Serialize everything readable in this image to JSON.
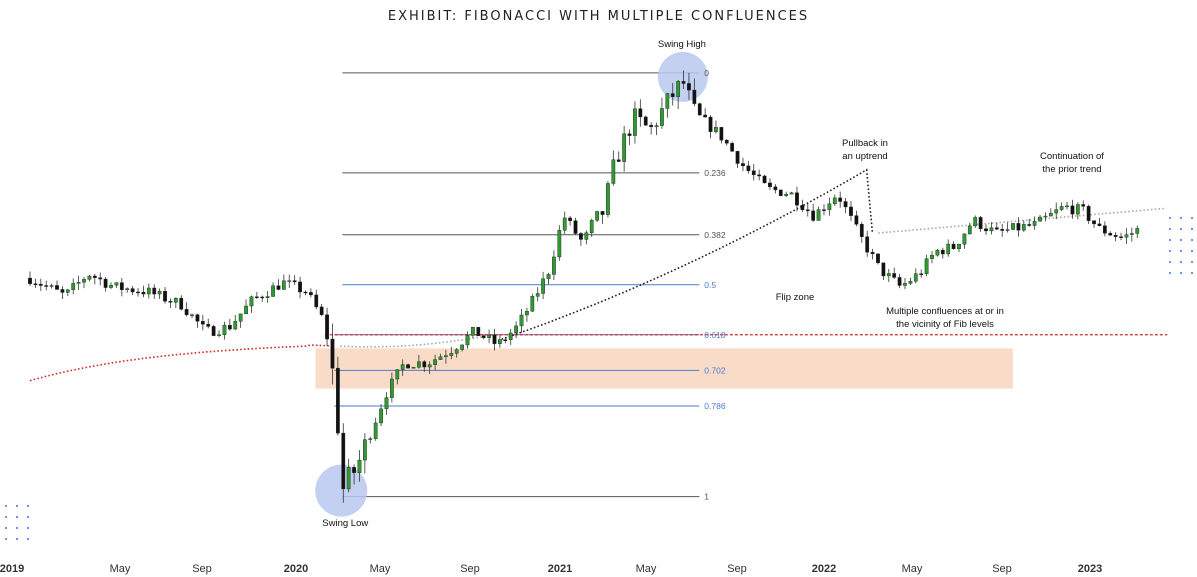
{
  "chart_data": {
    "type": "candlestick",
    "title": "EXHIBIT: FIBONACCI WITH MULTIPLE CONFLUENCES",
    "xlabel": "",
    "ylabel": "",
    "x_axis_labels": [
      "2019",
      "May",
      "Sep",
      "2020",
      "May",
      "Sep",
      "2021",
      "May",
      "Sep",
      "2022",
      "May",
      "Sep",
      "2023"
    ],
    "x_axis_bold": [
      "2019",
      "2020",
      "2021",
      "2022",
      "2023"
    ],
    "x_range": [
      0,
      48.5
    ],
    "y_range": [
      0,
      100
    ],
    "swing_low": {
      "t": 13.3,
      "price": 3
    },
    "swing_high": {
      "t": 27.9,
      "price": 98
    },
    "fib_levels": [
      {
        "label": "0",
        "ratio": 0,
        "color": "#555555"
      },
      {
        "label": "0.236",
        "ratio": 0.236,
        "color": "#555555"
      },
      {
        "label": "0.382",
        "ratio": 0.382,
        "color": "#555555"
      },
      {
        "label": "0.5",
        "ratio": 0.5,
        "color": "#4a7bd0"
      },
      {
        "label": "0.618",
        "ratio": 0.618,
        "color": "#4a7bd0"
      },
      {
        "label": "0.702",
        "ratio": 0.702,
        "color": "#4a7bd0"
      },
      {
        "label": "0.786",
        "ratio": 0.786,
        "color": "#4a7bd0"
      },
      {
        "label": "1",
        "ratio": 1,
        "color": "#555555"
      }
    ],
    "annotations": {
      "swing_high": "Swing High",
      "swing_low": "Swing Low",
      "pullback": [
        "Pullback in",
        "an uptrend"
      ],
      "continuation": [
        "Continuation of",
        "the prior trend"
      ],
      "flip_zone": "Flip zone",
      "confluences": [
        "Multiple confluences at or in",
        "the vicinity of Fib levels"
      ]
    },
    "colors": {
      "bull": "#2f9a2f",
      "bear": "#111111",
      "flip_zone": "#f9dcc8",
      "ma_red": "#d42a2a",
      "ma_black": "#222222",
      "ma_grey": "#aaaaaa",
      "swing_circle": "#b9c8f0"
    }
  }
}
